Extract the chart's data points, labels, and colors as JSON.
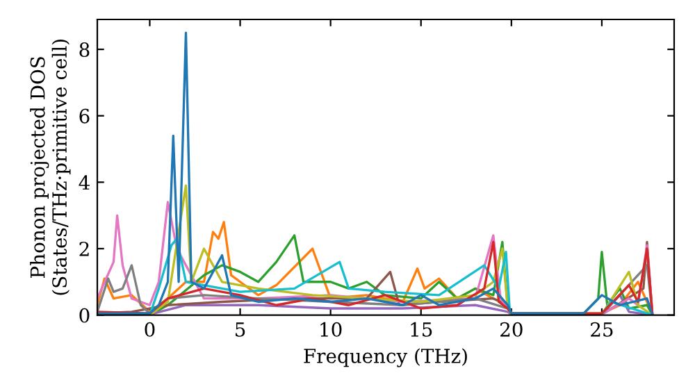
{
  "chart_data": {
    "type": "line",
    "xlabel": "Frequency (THz)",
    "ylabel": "Phonon projected DOS\n(States/THz·primitive cell)",
    "xlim": [
      -2.9,
      29
    ],
    "ylim": [
      0,
      8.9
    ],
    "xticks": [
      0,
      5,
      10,
      15,
      20,
      25
    ],
    "yticks": [
      0,
      2,
      4,
      6,
      8
    ],
    "grid": false,
    "legend": false,
    "marker": "none",
    "line_style": "solid",
    "series": [
      {
        "color": "#ff7f0e",
        "x": [
          -2.9,
          -2.5,
          -2,
          -1,
          0,
          1,
          2,
          3,
          3.5,
          3.8,
          4.1,
          4.5,
          5,
          6,
          7,
          9,
          10,
          12,
          14,
          14.8,
          15.2,
          16,
          17,
          18,
          19,
          19.8,
          20,
          25,
          26,
          27,
          27.5,
          27.8
        ],
        "values": [
          0.3,
          1.1,
          0.5,
          0.6,
          0.1,
          0.5,
          1.0,
          1.0,
          2.5,
          2.3,
          2.8,
          1.2,
          1.0,
          0.6,
          0.9,
          2.0,
          0.5,
          0.6,
          0.4,
          1.4,
          0.8,
          1.1,
          0.5,
          0.8,
          0.5,
          0.3,
          0.05,
          0.05,
          0.3,
          1.0,
          0.4,
          0
        ]
      },
      {
        "color": "#2ca02c",
        "x": [
          0,
          1,
          3,
          4,
          5,
          6,
          7,
          8,
          8.5,
          10,
          11,
          12,
          13,
          15,
          16,
          17,
          18,
          19,
          19.5,
          19.8,
          20,
          24,
          24.8,
          25,
          25.3,
          26,
          26.5,
          27.5,
          27.8
        ],
        "values": [
          0,
          0.3,
          1.2,
          1.5,
          1.3,
          1.0,
          1.6,
          2.4,
          1.0,
          1.0,
          0.8,
          1.0,
          0.6,
          0.5,
          1.0,
          0.5,
          0.8,
          0.6,
          2.2,
          0.2,
          0.05,
          0.05,
          0.5,
          1.9,
          0.3,
          0.8,
          0.2,
          0.3,
          0
        ]
      },
      {
        "color": "#9467bd",
        "x": [
          -2.9,
          0,
          2,
          6,
          10,
          14,
          18,
          19.8,
          20,
          25,
          26,
          26.5,
          27.8
        ],
        "values": [
          0.05,
          0.02,
          0.3,
          0.3,
          0.2,
          0.2,
          0.3,
          0.1,
          0.02,
          0.02,
          0.6,
          0.1,
          0
        ]
      },
      {
        "color": "#8c564b",
        "x": [
          -2.9,
          -1,
          1,
          4,
          8,
          12,
          13.3,
          13.8,
          16,
          19,
          19.8,
          20,
          25,
          27.3,
          27.5,
          27.8
        ],
        "values": [
          0.05,
          0.1,
          0.3,
          0.4,
          0.5,
          0.5,
          1.3,
          0.3,
          0.4,
          0.5,
          0.3,
          0.02,
          0.02,
          0.8,
          2.2,
          0
        ]
      },
      {
        "color": "#e377c2",
        "x": [
          -2.9,
          -2,
          -1.8,
          -1.5,
          -1,
          0,
          0.5,
          1,
          1.5,
          2,
          3,
          6,
          10,
          14,
          18,
          19,
          19.4,
          19.8,
          20,
          25,
          26.5,
          27,
          27.5,
          27.8
        ],
        "values": [
          0.5,
          1.6,
          3.0,
          1.5,
          0.5,
          0.3,
          1.0,
          3.4,
          2.0,
          1.5,
          0.5,
          0.5,
          0.6,
          0.4,
          0.5,
          2.4,
          0.5,
          0.2,
          0.02,
          0.02,
          0.5,
          0.3,
          2.1,
          0
        ]
      },
      {
        "color": "#7f7f7f",
        "x": [
          -2.9,
          -2.3,
          -2,
          -1.5,
          -1,
          -0.5,
          0,
          1,
          3,
          6,
          10,
          14,
          18,
          19.8,
          20,
          25,
          27.5,
          27.8
        ],
        "values": [
          0.1,
          1.1,
          0.7,
          0.8,
          1.5,
          0.3,
          0.05,
          0.5,
          0.6,
          0.5,
          0.4,
          0.3,
          0.5,
          0.2,
          0.02,
          0.02,
          1.5,
          0
        ]
      },
      {
        "color": "#bcbd22",
        "x": [
          0,
          1,
          2,
          2.3,
          3,
          4,
          6,
          9,
          12,
          15,
          18,
          19,
          19.5,
          19.8,
          20,
          25,
          26.5,
          27,
          27.8
        ],
        "values": [
          0,
          0.4,
          3.9,
          1.0,
          2.0,
          1.0,
          0.8,
          0.6,
          0.5,
          0.4,
          0.6,
          1.0,
          2.0,
          0.2,
          0.02,
          0.02,
          1.3,
          0.3,
          0
        ]
      },
      {
        "color": "#17becf",
        "x": [
          0,
          0.5,
          1.2,
          1.5,
          2,
          3,
          5,
          8,
          10.5,
          11,
          13,
          16,
          18.5,
          19.3,
          19.7,
          19.9,
          20,
          25,
          25.5,
          27.8
        ],
        "values": [
          0,
          0.8,
          2.1,
          2.3,
          1.0,
          0.9,
          0.7,
          0.8,
          1.6,
          0.8,
          0.7,
          0.6,
          1.5,
          0.8,
          1.9,
          0.2,
          0.02,
          0.02,
          0.4,
          0
        ]
      },
      {
        "color": "#d62728",
        "x": [
          -2.9,
          0,
          1,
          3,
          5,
          7,
          9,
          11,
          13,
          15,
          17,
          18.5,
          19,
          19.3,
          19.8,
          20,
          25,
          26.5,
          27,
          27.5,
          27.8
        ],
        "values": [
          0.1,
          0.05,
          0.5,
          0.8,
          0.6,
          0.3,
          0.5,
          0.3,
          0.6,
          0.2,
          0.3,
          0.8,
          2.2,
          0.4,
          0.2,
          0.05,
          0.05,
          0.9,
          0.4,
          2.0,
          0
        ]
      },
      {
        "color": "#1f77b4",
        "x": [
          -2.9,
          0,
          0.5,
          1.0,
          1.3,
          1.6,
          2.0,
          2.3,
          3,
          4,
          4.5,
          6,
          8,
          10,
          12,
          14,
          15,
          16,
          18,
          19,
          19.8,
          20,
          24,
          25,
          26,
          27.5,
          27.8
        ],
        "values": [
          0.05,
          0.05,
          0.3,
          1.0,
          5.4,
          1.0,
          8.5,
          1.0,
          0.8,
          1.8,
          0.6,
          0.4,
          0.5,
          0.4,
          0.5,
          0.3,
          0.6,
          0.3,
          0.5,
          0.8,
          0.3,
          0.05,
          0.05,
          0.6,
          0.3,
          0.5,
          0
        ]
      }
    ]
  }
}
